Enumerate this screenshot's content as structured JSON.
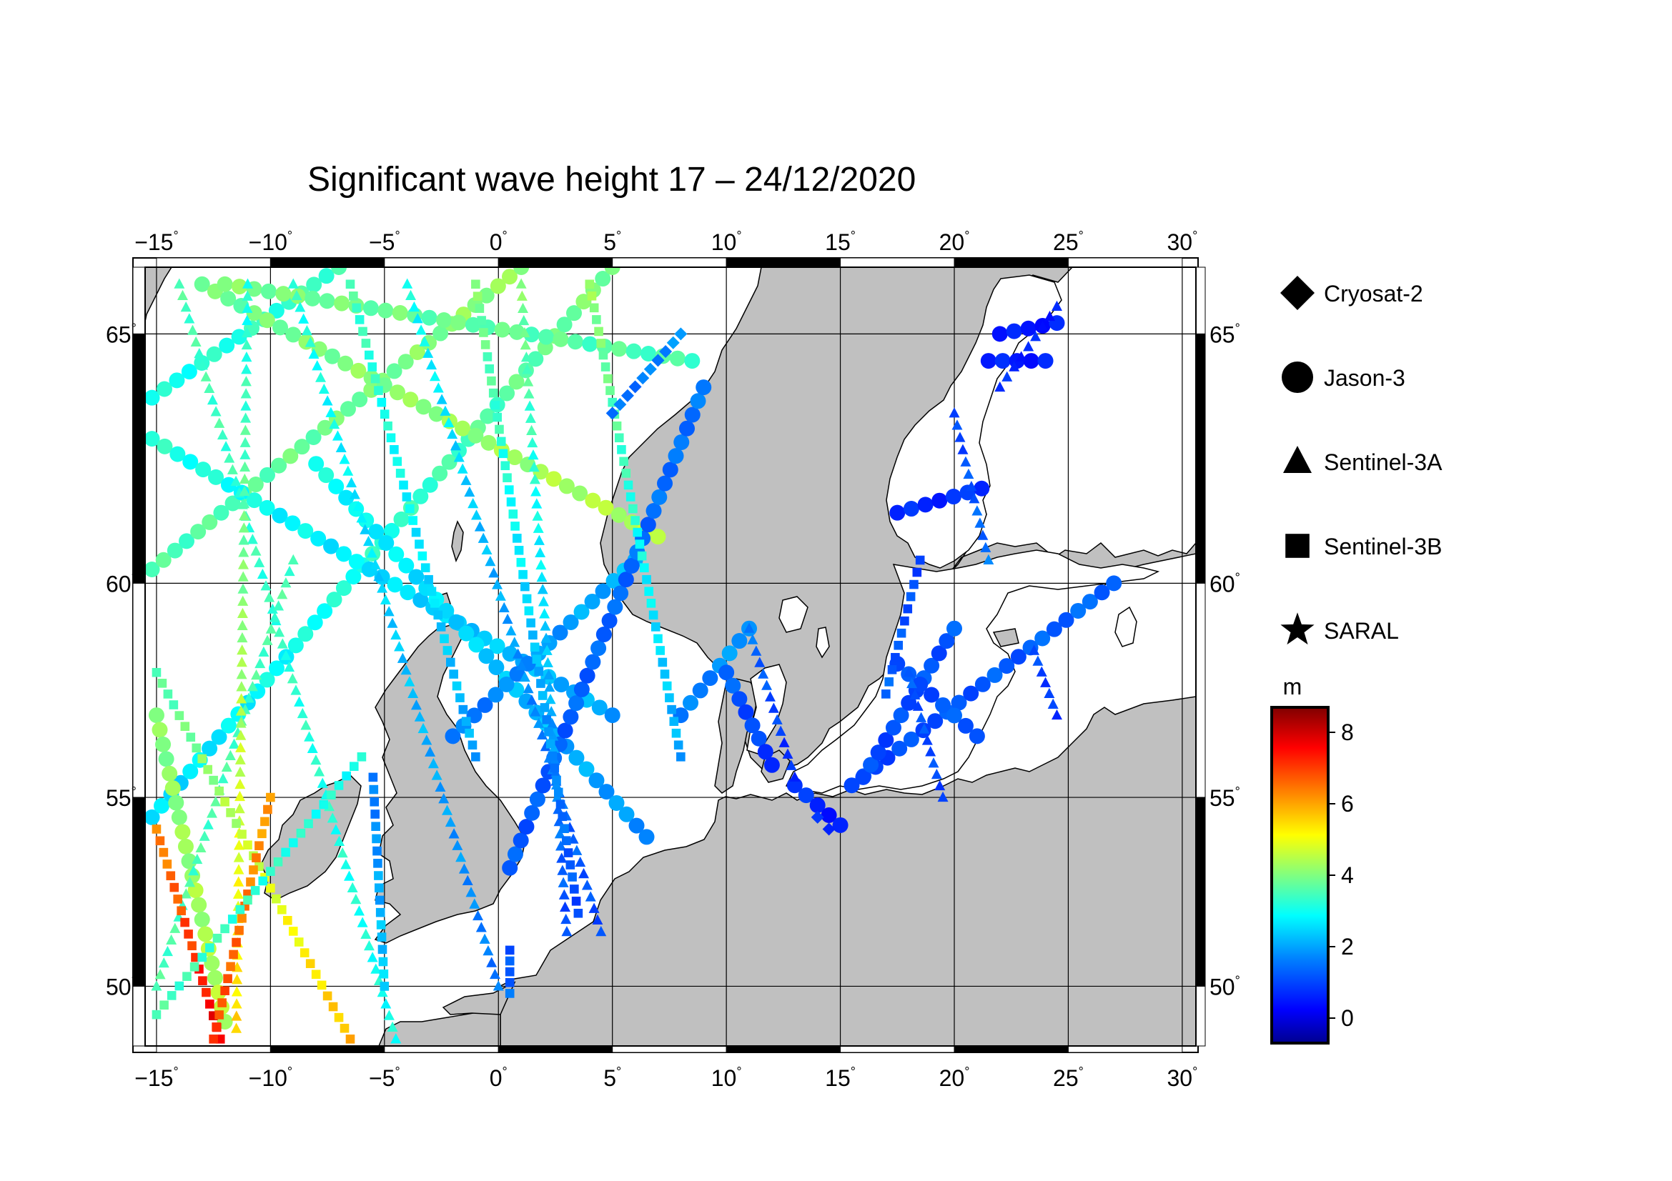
{
  "title": "Significant wave height 17 – 24/12/2020",
  "map": {
    "lon_ticks": [
      "−15",
      "−10",
      "−5",
      "0",
      "5",
      "10",
      "15",
      "20",
      "25",
      "30"
    ],
    "lat_ticks": [
      "65",
      "60",
      "55",
      "50"
    ],
    "degree_symbol": "°",
    "land_color": "#c0c0c0",
    "sea_color": "#ffffff",
    "grid_color": "#000000"
  },
  "legend": {
    "items": [
      {
        "label": "Cryosat-2",
        "symbol": "diamond-icon"
      },
      {
        "label": "Jason-3",
        "symbol": "circle-icon"
      },
      {
        "label": "Sentinel-3A",
        "symbol": "triangle-icon"
      },
      {
        "label": "Sentinel-3B",
        "symbol": "square-icon"
      },
      {
        "label": "SARAL",
        "symbol": "star-icon"
      }
    ]
  },
  "colorbar": {
    "unit": "m",
    "ticks": [
      "8",
      "6",
      "4",
      "2",
      "0"
    ],
    "min": -0.7,
    "max": 8.7,
    "colormap": [
      "#00008f",
      "#0000ff",
      "#0080ff",
      "#00ffff",
      "#80ff80",
      "#ffff00",
      "#ff8000",
      "#ff0000",
      "#800000"
    ]
  },
  "tracks": [
    {
      "satellite": "Jason-3",
      "symbol": "circle",
      "from": [
        -15.2,
        54.5
      ],
      "to": [
        5.0,
        66.2
      ],
      "swh_from": 2.5,
      "swh_to": 4.0
    },
    {
      "satellite": "Jason-3",
      "symbol": "circle",
      "from": [
        -15.2,
        60.3
      ],
      "to": [
        1.0,
        66.2
      ],
      "swh_from": 3.5,
      "swh_to": 4.2
    },
    {
      "satellite": "Jason-3",
      "symbol": "circle",
      "from": [
        -15.2,
        63.8
      ],
      "to": [
        -7.0,
        66.2
      ],
      "swh_from": 3.0,
      "swh_to": 3.5
    },
    {
      "satellite": "Jason-3",
      "symbol": "circle",
      "from": [
        -15.2,
        63.0
      ],
      "to": [
        5.0,
        57.0
      ],
      "swh_from": 3.2,
      "swh_to": 2.0
    },
    {
      "satellite": "Jason-3",
      "symbol": "circle",
      "from": [
        -13.0,
        65.9
      ],
      "to": [
        7.0,
        61.0
      ],
      "swh_from": 3.8,
      "swh_to": 4.5
    },
    {
      "satellite": "Jason-3",
      "symbol": "circle",
      "from": [
        -12.0,
        65.9
      ],
      "to": [
        8.5,
        64.5
      ],
      "swh_from": 4.0,
      "swh_to": 3.5
    },
    {
      "satellite": "Jason-3",
      "symbol": "circle",
      "from": [
        -8.0,
        62.5
      ],
      "to": [
        6.5,
        54.0
      ],
      "swh_from": 3.0,
      "swh_to": 1.8
    },
    {
      "satellite": "Jason-3",
      "symbol": "circle",
      "from": [
        -2.0,
        56.5
      ],
      "to": [
        6.0,
        60.5
      ],
      "swh_from": 1.5,
      "swh_to": 2.2
    },
    {
      "satellite": "Jason-3",
      "symbol": "circle",
      "from": [
        0.5,
        53.2
      ],
      "to": [
        9.0,
        64.0
      ],
      "swh_from": 1.2,
      "swh_to": 1.5
    },
    {
      "satellite": "Jason-3",
      "symbol": "circle",
      "from": [
        -15.0,
        57.0
      ],
      "to": [
        -12.0,
        49.0
      ],
      "swh_from": 4.0,
      "swh_to": 4.5
    },
    {
      "satellite": "Jason-3",
      "symbol": "circle",
      "from": [
        8.0,
        57.0
      ],
      "to": [
        11.0,
        59.0
      ],
      "swh_from": 1.5,
      "swh_to": 2.0
    },
    {
      "satellite": "Jason-3",
      "symbol": "circle",
      "from": [
        10.0,
        58.0
      ],
      "to": [
        12.0,
        55.8
      ],
      "swh_from": 1.3,
      "swh_to": 0.8
    },
    {
      "satellite": "Jason-3",
      "symbol": "circle",
      "from": [
        13.0,
        55.3
      ],
      "to": [
        15.0,
        54.3
      ],
      "swh_from": 0.8,
      "swh_to": 0.5
    },
    {
      "satellite": "Jason-3",
      "symbol": "circle",
      "from": [
        15.5,
        55.3
      ],
      "to": [
        27.0,
        60.0
      ],
      "swh_from": 1.0,
      "swh_to": 1.4
    },
    {
      "satellite": "Jason-3",
      "symbol": "circle",
      "from": [
        16.0,
        55.5
      ],
      "to": [
        20.0,
        59.0
      ],
      "swh_from": 1.0,
      "swh_to": 1.2
    },
    {
      "satellite": "Jason-3",
      "symbol": "circle",
      "from": [
        17.5,
        58.2
      ],
      "to": [
        21.0,
        56.5
      ],
      "swh_from": 1.0,
      "swh_to": 1.3
    },
    {
      "satellite": "Jason-3",
      "symbol": "circle",
      "from": [
        17.5,
        61.5
      ],
      "to": [
        21.2,
        62.0
      ],
      "swh_from": 0.6,
      "swh_to": 0.8
    },
    {
      "satellite": "Jason-3",
      "symbol": "circle",
      "from": [
        22.0,
        65.0
      ],
      "to": [
        24.5,
        65.2
      ],
      "swh_from": 0.4,
      "swh_to": 0.6
    },
    {
      "satellite": "Jason-3",
      "symbol": "circle",
      "from": [
        21.5,
        64.5
      ],
      "to": [
        24.0,
        64.5
      ],
      "swh_from": 0.5,
      "swh_to": 0.6
    },
    {
      "satellite": "Sentinel-3A",
      "symbol": "triangle",
      "from": [
        -14.0,
        65.9
      ],
      "to": [
        -4.5,
        48.5
      ],
      "swh_from": 3.5,
      "swh_to": 3.0
    },
    {
      "satellite": "Sentinel-3A",
      "symbol": "triangle",
      "from": [
        -9.0,
        65.9
      ],
      "to": [
        0.0,
        50.0
      ],
      "swh_from": 3.2,
      "swh_to": 1.5
    },
    {
      "satellite": "Sentinel-3A",
      "symbol": "triangle",
      "from": [
        -4.0,
        65.9
      ],
      "to": [
        4.5,
        51.5
      ],
      "swh_from": 3.0,
      "swh_to": 1.0
    },
    {
      "satellite": "Sentinel-3A",
      "symbol": "triangle",
      "from": [
        1.0,
        65.9
      ],
      "to": [
        3.0,
        51.5
      ],
      "swh_from": 4.0,
      "swh_to": 1.0
    },
    {
      "satellite": "Sentinel-3A",
      "symbol": "triangle",
      "from": [
        -15.0,
        50.0
      ],
      "to": [
        -9.0,
        60.5
      ],
      "swh_from": 3.5,
      "swh_to": 3.5
    },
    {
      "satellite": "Sentinel-3A",
      "symbol": "triangle",
      "from": [
        -11.0,
        65.9
      ],
      "to": [
        -11.5,
        48.8
      ],
      "swh_from": 3.0,
      "swh_to": 5.5
    },
    {
      "satellite": "Sentinel-3A",
      "symbol": "triangle",
      "from": [
        11.0,
        59.0
      ],
      "to": [
        13.0,
        55.5
      ],
      "swh_from": 1.5,
      "swh_to": 0.6
    },
    {
      "satellite": "Sentinel-3A",
      "symbol": "triangle",
      "from": [
        18.0,
        58.0
      ],
      "to": [
        19.5,
        55.0
      ],
      "swh_from": 1.2,
      "swh_to": 1.0
    },
    {
      "satellite": "Sentinel-3A",
      "symbol": "triangle",
      "from": [
        20.0,
        63.5
      ],
      "to": [
        21.5,
        60.5
      ],
      "swh_from": 0.9,
      "swh_to": 1.5
    },
    {
      "satellite": "Sentinel-3A",
      "symbol": "triangle",
      "from": [
        23.5,
        58.5
      ],
      "to": [
        24.5,
        57.0
      ],
      "swh_from": 1.0,
      "swh_to": 0.8
    },
    {
      "satellite": "Sentinel-3A",
      "symbol": "triangle",
      "from": [
        22.0,
        64.0
      ],
      "to": [
        24.5,
        65.5
      ],
      "swh_from": 0.7,
      "swh_to": 0.5
    },
    {
      "satellite": "Sentinel-3B",
      "symbol": "square",
      "from": [
        -15.0,
        58.0
      ],
      "to": [
        -6.5,
        48.5
      ],
      "swh_from": 3.5,
      "swh_to": 5.8
    },
    {
      "satellite": "Sentinel-3B",
      "symbol": "square",
      "from": [
        -15.0,
        54.2
      ],
      "to": [
        -12.2,
        48.5
      ],
      "swh_from": 6.2,
      "swh_to": 7.8
    },
    {
      "satellite": "Sentinel-3B",
      "symbol": "square",
      "from": [
        -10.0,
        55.0
      ],
      "to": [
        -12.5,
        48.5
      ],
      "swh_from": 6.0,
      "swh_to": 7.0
    },
    {
      "satellite": "Sentinel-3B",
      "symbol": "square",
      "from": [
        -6.5,
        65.9
      ],
      "to": [
        -1.0,
        56.0
      ],
      "swh_from": 3.5,
      "swh_to": 2.0
    },
    {
      "satellite": "Sentinel-3B",
      "symbol": "square",
      "from": [
        -1.0,
        65.9
      ],
      "to": [
        3.5,
        52.0
      ],
      "swh_from": 4.0,
      "swh_to": 1.0
    },
    {
      "satellite": "Sentinel-3B",
      "symbol": "square",
      "from": [
        4.0,
        65.9
      ],
      "to": [
        8.0,
        56.0
      ],
      "swh_from": 4.2,
      "swh_to": 2.0
    },
    {
      "satellite": "Sentinel-3B",
      "symbol": "square",
      "from": [
        -5.5,
        55.5
      ],
      "to": [
        -5.0,
        50.0
      ],
      "swh_from": 1.5,
      "swh_to": 2.5
    },
    {
      "satellite": "Sentinel-3B",
      "symbol": "square",
      "from": [
        -15.0,
        49.2
      ],
      "to": [
        -6.0,
        56.0
      ],
      "swh_from": 3.5,
      "swh_to": 3.0
    },
    {
      "satellite": "Sentinel-3B",
      "symbol": "square",
      "from": [
        0.5,
        51.0
      ],
      "to": [
        0.5,
        49.8
      ],
      "swh_from": 1.0,
      "swh_to": 1.5
    },
    {
      "satellite": "Sentinel-3B",
      "symbol": "square",
      "from": [
        17.0,
        57.5
      ],
      "to": [
        18.5,
        60.5
      ],
      "swh_from": 1.3,
      "swh_to": 1.0
    },
    {
      "satellite": "Cryosat-2",
      "symbol": "diamond",
      "from": [
        5.0,
        63.5
      ],
      "to": [
        8.0,
        65.0
      ],
      "swh_from": 1.4,
      "swh_to": 1.8
    },
    {
      "satellite": "Cryosat-2",
      "symbol": "diamond",
      "from": [
        14.5,
        54.2
      ],
      "to": [
        14.0,
        54.5
      ],
      "swh_from": 0.6,
      "swh_to": 0.6
    }
  ]
}
